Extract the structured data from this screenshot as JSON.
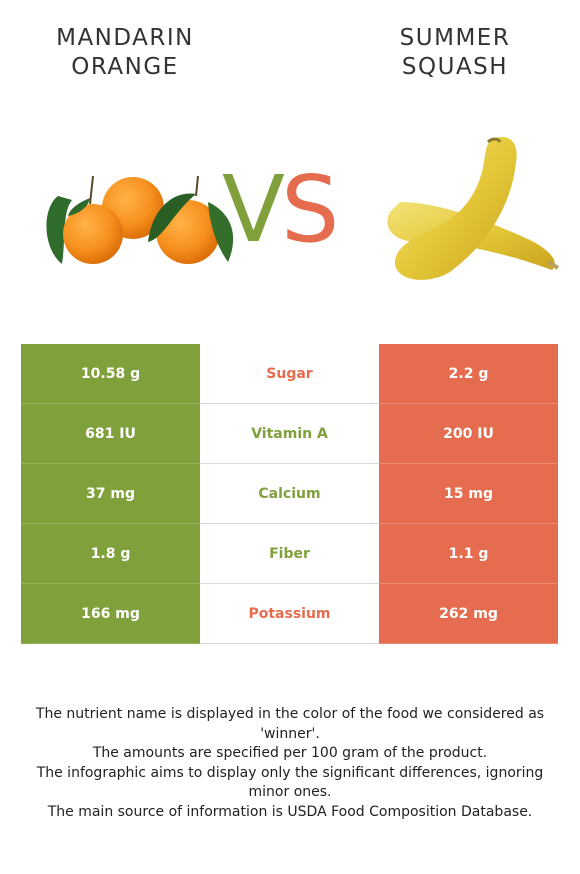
{
  "header": {
    "left_title_line1": "MANDARIN",
    "left_title_line2": "ORANGE",
    "right_title_line1": "SUMMER",
    "right_title_line2": "SQUASH",
    "vs_v": "V",
    "vs_s": "S"
  },
  "colors": {
    "winner_left": "#7fa03a",
    "winner_right": "#e56c4e"
  },
  "rows": [
    {
      "left": "10.58 g",
      "nutrient": "Sugar",
      "right": "2.2 g",
      "winner": "right"
    },
    {
      "left": "681 IU",
      "nutrient": "Vitamin A",
      "right": "200 IU",
      "winner": "left"
    },
    {
      "left": "37 mg",
      "nutrient": "Calcium",
      "right": "15 mg",
      "winner": "left"
    },
    {
      "left": "1.8 g",
      "nutrient": "Fiber",
      "right": "1.1 g",
      "winner": "left"
    },
    {
      "left": "166 mg",
      "nutrient": "Potassium",
      "right": "262 mg",
      "winner": "right"
    }
  ],
  "footnotes": [
    "The nutrient name is displayed in the color of the food we considered as 'winner'.",
    "The amounts are specified per 100 gram of the product.",
    "The infographic aims to display only the significant differences, ignoring minor ones.",
    "The main source of information is USDA Food Composition Database."
  ]
}
